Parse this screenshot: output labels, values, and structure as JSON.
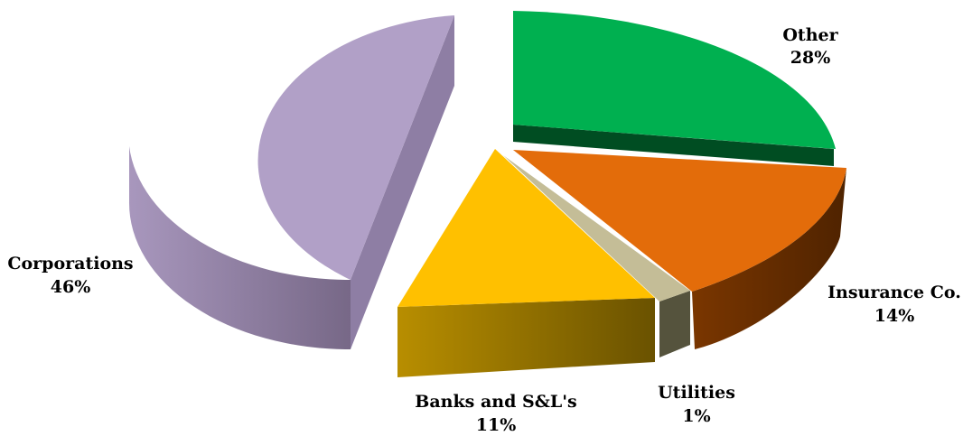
{
  "chart_data": {
    "type": "pie",
    "variant": "3d-exploded",
    "title": "",
    "slices": [
      {
        "label": "Other",
        "value": 28,
        "value_label": "28%",
        "color": "#00B050",
        "side_color": "#004D22"
      },
      {
        "label": "Insurance Co.",
        "value": 14,
        "value_label": "14%",
        "color": "#E36C0A",
        "side_color": "#5C2A00"
      },
      {
        "label": "Utilities",
        "value": 1,
        "value_label": "1%",
        "color": "#C4BD97",
        "side_color": "#4A4638"
      },
      {
        "label": "Banks and S&L's",
        "value": 11,
        "value_label": "11%",
        "color": "#FFC000",
        "side_color": "#7A6000"
      },
      {
        "label": "Corporations",
        "value": 46,
        "value_label": "46%",
        "color": "#B1A0C7",
        "side_color": "#7B6B91"
      }
    ]
  }
}
